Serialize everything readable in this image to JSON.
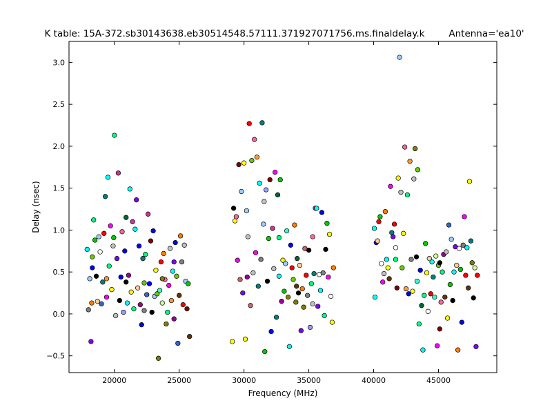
{
  "chart_data": {
    "type": "scatter",
    "title": "K table: 15A-372.sb30143638.eb30514548.57111.371927071756.ms.finaldelay.k",
    "subtitle": "Antenna='ea10'",
    "xlabel": "Frequency (MHz)",
    "ylabel": "Delay (nsec)",
    "xlim": [
      16500,
      49500
    ],
    "ylim": [
      -0.7,
      3.25
    ],
    "xticks": [
      20000,
      25000,
      30000,
      35000,
      40000,
      45000
    ],
    "yticks": [
      -0.5,
      0.0,
      0.5,
      1.0,
      1.5,
      2.0,
      2.5,
      3.0
    ],
    "xtick_labels": [
      "20000",
      "25000",
      "30000",
      "35000",
      "40000",
      "45000"
    ],
    "ytick_labels": [
      "−0.5",
      "0.0",
      "0.5",
      "1.0",
      "1.5",
      "2.0",
      "2.5",
      "3.0"
    ],
    "grid": false,
    "legend": "none",
    "palette": [
      "#ff0000",
      "#00cc00",
      "#0000ff",
      "#00ffff",
      "#ff00ff",
      "#ffff00",
      "#000000",
      "#ff8000",
      "#8000ff",
      "#00ff80",
      "#808000",
      "#008080",
      "#800000",
      "#808080",
      "#c0c0c0",
      "#ffcc99",
      "#99ccff",
      "#ccff99",
      "#ff6699",
      "#663300",
      "#3366cc",
      "#cc3399",
      "#66cc00",
      "#006633",
      "#ffffff",
      "#990099",
      "#ff9933",
      "#33ffcc",
      "#9999ff",
      "#cc6666"
    ],
    "points": [
      [
        17900,
        0.77,
        3
      ],
      [
        18000,
        0.05,
        13
      ],
      [
        18100,
        0.42,
        16
      ],
      [
        18200,
        -0.33,
        8
      ],
      [
        18300,
        0.55,
        2
      ],
      [
        18300,
        0.68,
        22
      ],
      [
        18400,
        1.12,
        9
      ],
      [
        18500,
        0.88,
        1
      ],
      [
        18600,
        0.45,
        6
      ],
      [
        18700,
        0.15,
        15
      ],
      [
        18800,
        0.92,
        16
      ],
      [
        18900,
        0.74,
        24
      ],
      [
        19000,
        0.12,
        20
      ],
      [
        19100,
        0.38,
        11
      ],
      [
        19200,
        0.96,
        0
      ],
      [
        19300,
        1.4,
        11
      ],
      [
        19400,
        0.42,
        26
      ],
      [
        19500,
        1.63,
        3
      ],
      [
        19600,
        0.57,
        9
      ],
      [
        19700,
        1.05,
        4
      ],
      [
        19800,
        0.29,
        5
      ],
      [
        19900,
        0.81,
        14
      ],
      [
        19950,
        0.91,
        1
      ],
      [
        20000,
        2.13,
        9
      ],
      [
        20100,
        -0.02,
        14
      ],
      [
        20200,
        0.66,
        8
      ],
      [
        20300,
        1.68,
        21
      ],
      [
        20400,
        0.16,
        6
      ],
      [
        20500,
        0.44,
        2
      ],
      [
        20600,
        0.98,
        18
      ],
      [
        20700,
        0.02,
        28
      ],
      [
        20800,
        0.75,
        2
      ],
      [
        20900,
        1.15,
        23
      ],
      [
        21000,
        0.13,
        3
      ],
      [
        21100,
        0.46,
        25
      ],
      [
        21200,
        1.49,
        3
      ],
      [
        21300,
        0.26,
        5
      ],
      [
        21400,
        1.1,
        21
      ],
      [
        21500,
        0.06,
        9
      ],
      [
        21600,
        1.01,
        3
      ],
      [
        21700,
        1.36,
        8
      ],
      [
        21800,
        0.31,
        15
      ],
      [
        21900,
        0.81,
        2
      ],
      [
        22000,
        0.11,
        25
      ],
      [
        22100,
        -0.13,
        2
      ],
      [
        22200,
        0.66,
        11
      ],
      [
        22300,
        0.37,
        22
      ],
      [
        22400,
        0.71,
        9
      ],
      [
        22500,
        0.23,
        20
      ],
      [
        22600,
        1.19,
        21
      ],
      [
        22700,
        0.36,
        2
      ],
      [
        22800,
        0.87,
        12
      ],
      [
        22900,
        0.02,
        6
      ],
      [
        23000,
        0.99,
        2
      ],
      [
        23100,
        0.21,
        16
      ],
      [
        23200,
        0.52,
        5
      ],
      [
        23300,
        0.24,
        22
      ],
      [
        23400,
        -0.53,
        10
      ],
      [
        23500,
        0.28,
        27
      ],
      [
        23600,
        0.62,
        0
      ],
      [
        23700,
        0.13,
        17
      ],
      [
        23800,
        0.72,
        7
      ],
      [
        23900,
        0.41,
        18
      ],
      [
        24000,
        -0.12,
        10
      ],
      [
        24100,
        0.02,
        9
      ],
      [
        24200,
        0.34,
        4
      ],
      [
        24300,
        0.78,
        14
      ],
      [
        24400,
        0.16,
        26
      ],
      [
        24500,
        0.51,
        3
      ],
      [
        24600,
        -0.06,
        25
      ],
      [
        24700,
        0.85,
        2
      ],
      [
        24800,
        0.45,
        22
      ],
      [
        24900,
        -0.35,
        20
      ],
      [
        25000,
        0.22,
        19
      ],
      [
        25100,
        0.93,
        7
      ],
      [
        25200,
        0.62,
        13
      ],
      [
        25300,
        0.11,
        0
      ],
      [
        25400,
        0.82,
        14
      ],
      [
        25500,
        0.39,
        16
      ],
      [
        25600,
        0.06,
        12
      ],
      [
        25700,
        0.36,
        1
      ],
      [
        25800,
        -0.27,
        19
      ],
      [
        18250,
        0.13,
        7
      ],
      [
        19400,
        0.2,
        4
      ],
      [
        20900,
        0.38,
        6
      ],
      [
        22300,
        0.04,
        13
      ],
      [
        23700,
        0.42,
        10
      ],
      [
        24600,
        0.62,
        8
      ],
      [
        29100,
        -0.33,
        5
      ],
      [
        29200,
        1.26,
        6
      ],
      [
        29300,
        1.11,
        5
      ],
      [
        29400,
        1.16,
        18
      ],
      [
        29500,
        0.64,
        4
      ],
      [
        29600,
        1.78,
        12
      ],
      [
        29700,
        0.41,
        29
      ],
      [
        29800,
        1.46,
        16
      ],
      [
        29900,
        0.25,
        8
      ],
      [
        30000,
        1.8,
        5
      ],
      [
        30100,
        -0.3,
        5
      ],
      [
        30200,
        1.23,
        16
      ],
      [
        30300,
        0.92,
        14
      ],
      [
        30400,
        2.27,
        0
      ],
      [
        30500,
        0.1,
        29
      ],
      [
        30600,
        1.83,
        22
      ],
      [
        30700,
        0.49,
        14
      ],
      [
        30800,
        2.08,
        18
      ],
      [
        30900,
        0.73,
        4
      ],
      [
        31000,
        1.87,
        26
      ],
      [
        31100,
        0.33,
        11
      ],
      [
        31200,
        1.56,
        3
      ],
      [
        31300,
        0.65,
        13
      ],
      [
        31400,
        2.28,
        11
      ],
      [
        31500,
        1.07,
        16
      ],
      [
        31600,
        -0.45,
        1
      ],
      [
        31700,
        1.48,
        28
      ],
      [
        31800,
        0.39,
        6
      ],
      [
        31900,
        0.9,
        1
      ],
      [
        32000,
        1.6,
        12
      ],
      [
        32100,
        -0.21,
        2
      ],
      [
        32200,
        1.02,
        21
      ],
      [
        32300,
        0.54,
        14
      ],
      [
        32400,
        1.69,
        4
      ],
      [
        32500,
        -0.04,
        11
      ],
      [
        32600,
        1.42,
        23
      ],
      [
        32700,
        0.45,
        3
      ],
      [
        32800,
        1.6,
        1
      ],
      [
        32900,
        0.15,
        25
      ],
      [
        33000,
        0.64,
        5
      ],
      [
        33100,
        0.27,
        1
      ],
      [
        33200,
        0.6,
        16
      ],
      [
        33300,
        0.99,
        27
      ],
      [
        33400,
        0.2,
        10
      ],
      [
        33500,
        -0.39,
        3
      ],
      [
        33600,
        0.82,
        2
      ],
      [
        33700,
        0.55,
        0
      ],
      [
        33800,
        0.41,
        22
      ],
      [
        33900,
        1.06,
        7
      ],
      [
        34000,
        0.14,
        10
      ],
      [
        34100,
        0.66,
        23
      ],
      [
        34200,
        0.25,
        6
      ],
      [
        34300,
        0.58,
        15
      ],
      [
        34400,
        -0.2,
        8
      ],
      [
        34500,
        0.3,
        7
      ],
      [
        34600,
        0.08,
        10
      ],
      [
        34700,
        0.78,
        29
      ],
      [
        34800,
        0.46,
        0
      ],
      [
        34900,
        0.22,
        13
      ],
      [
        35000,
        0.76,
        6
      ],
      [
        35100,
        -0.16,
        28
      ],
      [
        35200,
        0.36,
        9
      ],
      [
        35300,
        0.12,
        14
      ],
      [
        35400,
        0.48,
        11
      ],
      [
        35500,
        1.26,
        4
      ],
      [
        35600,
        1.26,
        3
      ],
      [
        35700,
        0.09,
        8
      ],
      [
        35800,
        0.47,
        24
      ],
      [
        35900,
        0.28,
        3
      ],
      [
        36000,
        1.21,
        2
      ],
      [
        36100,
        0.49,
        13
      ],
      [
        36200,
        -0.02,
        9
      ],
      [
        36300,
        0.77,
        6
      ],
      [
        36400,
        1.08,
        1
      ],
      [
        36500,
        0.44,
        4
      ],
      [
        36600,
        0.95,
        5
      ],
      [
        36700,
        0.21,
        24
      ],
      [
        36800,
        -0.1,
        5
      ],
      [
        36900,
        0.55,
        7
      ],
      [
        30250,
        0.44,
        25
      ],
      [
        31550,
        1.34,
        14
      ],
      [
        32700,
        0.91,
        9
      ],
      [
        34050,
        0.33,
        19
      ],
      [
        35300,
        0.92,
        18
      ],
      [
        40100,
        0.2,
        3
      ],
      [
        40200,
        0.85,
        2
      ],
      [
        40300,
        0.87,
        15
      ],
      [
        40400,
        1.1,
        0
      ],
      [
        40500,
        1.16,
        1
      ],
      [
        40600,
        0.6,
        24
      ],
      [
        40700,
        0.38,
        4
      ],
      [
        40800,
        0.48,
        14
      ],
      [
        40900,
        1.22,
        7
      ],
      [
        41000,
        0.65,
        3
      ],
      [
        41100,
        0.55,
        5
      ],
      [
        41200,
        0.42,
        19
      ],
      [
        41300,
        1.52,
        4
      ],
      [
        41400,
        0.97,
        11
      ],
      [
        41500,
        0.92,
        8
      ],
      [
        41600,
        1.07,
        0
      ],
      [
        41700,
        0.65,
        9
      ],
      [
        41800,
        0.31,
        12
      ],
      [
        41900,
        1.62,
        5
      ],
      [
        42000,
        3.06,
        16
      ],
      [
        42100,
        1.45,
        14
      ],
      [
        42200,
        0.55,
        22
      ],
      [
        42300,
        0.96,
        5
      ],
      [
        42400,
        1.99,
        18
      ],
      [
        42500,
        0.3,
        26
      ],
      [
        42600,
        1.42,
        9
      ],
      [
        42700,
        0.24,
        2
      ],
      [
        42800,
        1.82,
        26
      ],
      [
        42900,
        0.65,
        13
      ],
      [
        43000,
        0.27,
        5
      ],
      [
        43100,
        1.61,
        14
      ],
      [
        43200,
        1.97,
        10
      ],
      [
        43300,
        0.68,
        6
      ],
      [
        43400,
        1.72,
        22
      ],
      [
        43500,
        -0.12,
        9
      ],
      [
        43600,
        0.52,
        2
      ],
      [
        43700,
        0.1,
        23
      ],
      [
        43800,
        -0.43,
        3
      ],
      [
        43900,
        0.22,
        9
      ],
      [
        44000,
        0.84,
        1
      ],
      [
        44100,
        0.49,
        5
      ],
      [
        44200,
        0.03,
        24
      ],
      [
        44300,
        0.66,
        15
      ],
      [
        44400,
        0.24,
        0
      ],
      [
        44500,
        0.62,
        3
      ],
      [
        44600,
        0.44,
        11
      ],
      [
        44700,
        0.2,
        27
      ],
      [
        44800,
        0.69,
        17
      ],
      [
        44900,
        -0.38,
        4
      ],
      [
        45000,
        0.58,
        22
      ],
      [
        45100,
        -0.18,
        12
      ],
      [
        45200,
        0.14,
        18
      ],
      [
        45300,
        0.5,
        9
      ],
      [
        45400,
        0.71,
        25
      ],
      [
        45500,
        0.2,
        19
      ],
      [
        45600,
        0.74,
        14
      ],
      [
        45700,
        -0.05,
        5
      ],
      [
        45800,
        1.06,
        20
      ],
      [
        45900,
        0.35,
        1
      ],
      [
        46000,
        0.89,
        16
      ],
      [
        46100,
        0.16,
        6
      ],
      [
        46200,
        0.5,
        3
      ],
      [
        46300,
        0.8,
        8
      ],
      [
        46400,
        0.58,
        15
      ],
      [
        46500,
        -0.43,
        7
      ],
      [
        46600,
        0.78,
        24
      ],
      [
        46700,
        0.53,
        1
      ],
      [
        46800,
        -0.1,
        2
      ],
      [
        46900,
        0.82,
        13
      ],
      [
        47000,
        1.16,
        4
      ],
      [
        47100,
        0.46,
        0
      ],
      [
        47200,
        0.79,
        3
      ],
      [
        47300,
        0.31,
        19
      ],
      [
        47400,
        1.58,
        5
      ],
      [
        47500,
        0.87,
        11
      ],
      [
        47600,
        0.61,
        10
      ],
      [
        47700,
        0.19,
        6
      ],
      [
        47800,
        0.55,
        17
      ],
      [
        47900,
        -0.39,
        8
      ],
      [
        48000,
        0.46,
        0
      ],
      [
        40050,
        1.02,
        3
      ],
      [
        41700,
        0.79,
        24
      ],
      [
        43350,
        0.39,
        27
      ],
      [
        45100,
        0.61,
        6
      ]
    ]
  }
}
